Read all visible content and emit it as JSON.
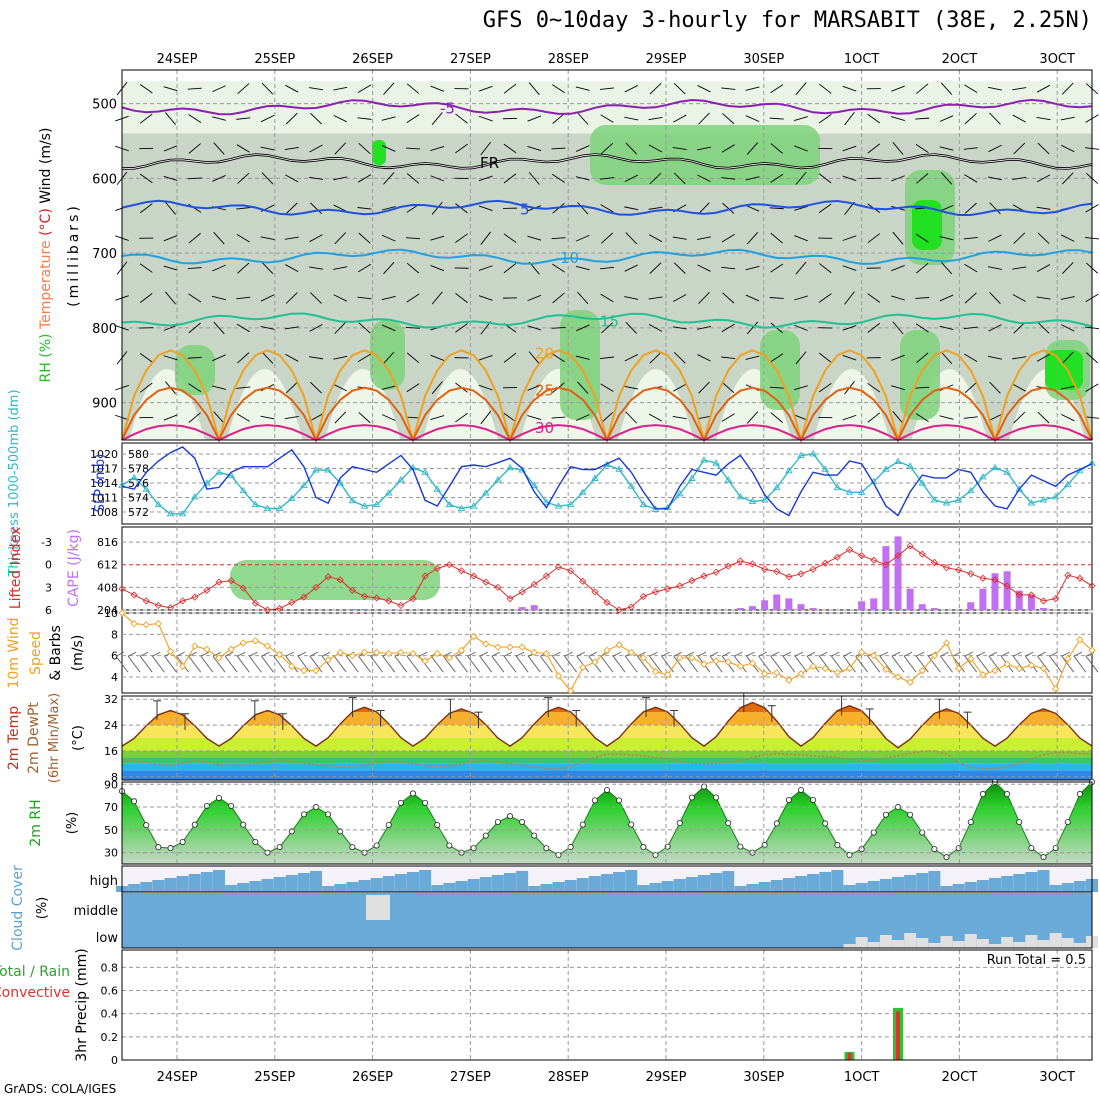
{
  "title": "GFS 0~10day 3-hourly for MARSABIT (38E, 2.25N)",
  "credit": "GrADS: COLA/IGES",
  "chart_data": [
    {
      "id": "upper-air",
      "type": "heatmap",
      "date_labels": [
        "24SEP",
        "25SEP",
        "26SEP",
        "27SEP",
        "28SEP",
        "29SEP",
        "30SEP",
        "1OCT",
        "2OCT",
        "3OCT"
      ],
      "ylabel_parts": [
        {
          "text": "RH (%)",
          "color": "#22c022"
        },
        {
          "text": "Temperature",
          "color": "#ff7a4a"
        },
        {
          "text": "(°C)",
          "color": "#d02020"
        },
        {
          "text": "Wind (m/s)",
          "color": "#000000"
        }
      ],
      "ylabel_right": "(millibars)",
      "yticks": [
        "500",
        "600",
        "700",
        "800",
        "900"
      ],
      "contours": [
        {
          "label": "-5",
          "color": "#8a1fb0",
          "level_mb": 505
        },
        {
          "label": "FR",
          "color": "#000000",
          "level_mb": 578
        },
        {
          "label": "5",
          "color": "#2050e0",
          "level_mb": 640
        },
        {
          "label": "10",
          "color": "#20a0e0",
          "level_mb": 705
        },
        {
          "label": "15",
          "color": "#20c090",
          "level_mb": 790
        },
        {
          "label": "20",
          "color": "#f0a020",
          "level_mb": 830
        },
        {
          "label": "25",
          "color": "#e06010",
          "level_mb": 880
        },
        {
          "label": "30",
          "color": "#e0208a",
          "level_mb": 930
        }
      ]
    },
    {
      "id": "thickness-slp",
      "type": "line",
      "ylabel_left": "Thickness 1000-500mb (dm)",
      "ylabel_right": "SLP (mb)",
      "left_ticks": [
        "580",
        "578",
        "576",
        "574",
        "572"
      ],
      "right_ticks": [
        "1020",
        "1017",
        "1014",
        "1011",
        "1008"
      ],
      "series": [
        {
          "name": "Thickness 1000-500mb (dm)",
          "color": "#30b8c8",
          "axis": "left",
          "ylim": [
            572,
            581.5
          ],
          "values": [
            576.5,
            577.5,
            576.0,
            574.0,
            572.8,
            572.8,
            575.0,
            576.8,
            578.2,
            577.8,
            575.8,
            574.0,
            573.5,
            573.5,
            574.8,
            576.5,
            578.5,
            578.5,
            576.8,
            574.5,
            573.8,
            574.0,
            575.5,
            577.2,
            578.8,
            578.2,
            576.0,
            574.0,
            573.5,
            573.8,
            575.5,
            577.2,
            578.8,
            578.5,
            576.5,
            574.3,
            573.8,
            574.0,
            575.6,
            577.4,
            579.2,
            578.6,
            576.4,
            574.0,
            573.4,
            573.6,
            575.4,
            577.4,
            579.8,
            579.4,
            577.2,
            575.0,
            574.4,
            574.6,
            576.2,
            578.4,
            580.4,
            580.6,
            578.6,
            576.2,
            575.6,
            575.6,
            577.0,
            578.6,
            579.6,
            579.0,
            576.8,
            574.6,
            574.2,
            574.6,
            575.8,
            577.6,
            578.8,
            578.2,
            576.0,
            574.2,
            574.6,
            575.0,
            576.6,
            578.4,
            579.4
          ]
        },
        {
          "name": "SLP (mb)",
          "color": "#1838d8",
          "axis": "right",
          "ylim": [
            1007,
            1020
          ],
          "values": [
            1013.0,
            1012.5,
            1015.5,
            1017.5,
            1019.0,
            1020.0,
            1018.0,
            1012.5,
            1012.8,
            1015.5,
            1016.5,
            1016.5,
            1016.5,
            1018.0,
            1019.5,
            1016.5,
            1011.0,
            1010.0,
            1014.5,
            1016.5,
            1016.0,
            1015.5,
            1017.0,
            1018.5,
            1016.0,
            1010.5,
            1009.5,
            1013.0,
            1016.5,
            1016.8,
            1016.5,
            1017.2,
            1018.0,
            1016.2,
            1012.0,
            1009.2,
            1013.0,
            1016.5,
            1016.0,
            1016.0,
            1017.0,
            1018.0,
            1015.5,
            1012.0,
            1009.0,
            1009.0,
            1013.0,
            1016.0,
            1015.5,
            1015.0,
            1017.0,
            1018.5,
            1015.5,
            1011.5,
            1009.0,
            1007.8,
            1012.0,
            1015.5,
            1015.0,
            1015.0,
            1017.5,
            1017.0,
            1013.5,
            1009.5,
            1007.8,
            1012.0,
            1015.0,
            1014.5,
            1014.5,
            1016.0,
            1015.5,
            1012.0,
            1009.5,
            1009.0,
            1012.5,
            1015.0,
            1014.0,
            1013.0,
            1015.0,
            1016.0,
            1017.0
          ]
        }
      ]
    },
    {
      "id": "lifted-cape",
      "type": "bar",
      "ylabel_left": "Lifted Index",
      "ylabel_right": "CAPE (J/kg)",
      "left_ticks": [
        "-3",
        "0",
        "3",
        "6"
      ],
      "right_ticks": [
        "816",
        "612",
        "408",
        "204"
      ],
      "series": [
        {
          "name": "Lifted Index",
          "color": "#e02828",
          "axis": "left",
          "ylim": [
            6,
            -5
          ],
          "values": [
            3.2,
            4.0,
            4.8,
            5.4,
            5.7,
            4.8,
            4.3,
            3.4,
            2.3,
            2.1,
            3.1,
            5.1,
            6.0,
            5.8,
            5.0,
            4.3,
            3.0,
            1.6,
            2.0,
            3.4,
            4.2,
            4.4,
            4.8,
            5.4,
            4.5,
            1.5,
            0.5,
            0.0,
            0.8,
            1.5,
            2.3,
            3.0,
            4.5,
            3.6,
            2.6,
            1.5,
            0.3,
            0.8,
            2.2,
            3.6,
            5.0,
            6.0,
            5.6,
            4.2,
            3.6,
            3.2,
            2.8,
            2.1,
            1.5,
            1.0,
            0.2,
            -0.5,
            -0.1,
            0.6,
            0.9,
            1.6,
            1.2,
            0.6,
            -0.2,
            -1.0,
            -2.0,
            -1.2,
            -0.6,
            0.0,
            -1.2,
            -2.5,
            -1.4,
            -0.3,
            0.4,
            0.7,
            1.2,
            1.8,
            2.0,
            2.8,
            4.0,
            4.0,
            4.8,
            4.5,
            1.4,
            1.8,
            2.8,
            3.2,
            2.8,
            3.4,
            2.2,
            1.3,
            0.6,
            0.0,
            0.6,
            0.1
          ]
        },
        {
          "name": "CAPE (J/kg)",
          "color": "#c070f0",
          "axis": "right",
          "ylim": [
            0,
            816
          ],
          "values": [
            0,
            0,
            0,
            0,
            0,
            0,
            0,
            0,
            0,
            0,
            0,
            0,
            0,
            0,
            0,
            0,
            0,
            0,
            0,
            10,
            10,
            0,
            5,
            5,
            0,
            0,
            0,
            0,
            0,
            0,
            0,
            0,
            0,
            30,
            50,
            0,
            0,
            0,
            0,
            0,
            0,
            0,
            0,
            0,
            0,
            0,
            0,
            0,
            0,
            0,
            0,
            20,
            40,
            100,
            160,
            120,
            60,
            20,
            0,
            0,
            0,
            90,
            120,
            660,
            760,
            220,
            60,
            20,
            0,
            0,
            80,
            220,
            380,
            400,
            200,
            160,
            20,
            0,
            0,
            0,
            0,
            0,
            0,
            0,
            0,
            0,
            0,
            120,
            100,
            60,
            80
          ]
        }
      ]
    },
    {
      "id": "wind10m",
      "type": "line",
      "ylabel": "10m Wind Speed & Barbs (m/s)",
      "ylabel_right": "(m/s)",
      "yticks": [
        "10",
        "8",
        "6",
        "4"
      ],
      "series": [
        {
          "name": "10m Wind Speed",
          "color": "#f0a020",
          "ylim": [
            2.5,
            10
          ],
          "values": [
            10,
            9,
            8.9,
            9.0,
            6.4,
            5.0,
            6.9,
            6.6,
            5.8,
            6.6,
            7.2,
            7.4,
            6.9,
            6.1,
            5.0,
            4.6,
            4.6,
            5.6,
            6.3,
            6.0,
            6.3,
            6.3,
            6.2,
            6.3,
            6.2,
            5.5,
            6.2,
            5.8,
            6.5,
            7.8,
            7.1,
            6.8,
            6.8,
            6.8,
            6.3,
            6.2,
            4.1,
            2.7,
            4.9,
            5.4,
            6.5,
            7.0,
            6.3,
            5.8,
            4.5,
            4.2,
            5.8,
            5.8,
            5.2,
            5.5,
            5.4,
            5.0,
            5.3,
            4.3,
            4.4,
            3.7,
            4.3,
            5.0,
            4.8,
            4.4,
            4.8,
            6.3,
            6.0,
            4.7,
            4.0,
            3.5,
            4.6,
            6.0,
            7.2,
            4.8,
            5.7,
            4.2,
            4.6,
            5.2,
            4.8,
            5.1,
            4.8,
            2.9,
            5.7,
            7.5,
            6.5,
            5.8,
            5.5,
            8.2,
            7.2,
            8.0,
            8.6,
            7.9,
            8.2,
            9.2,
            9.5
          ]
        }
      ]
    },
    {
      "id": "temp2m",
      "type": "area",
      "ylabel": "2m Temp 2m DewPt (6hr Min/Max) (°C)",
      "yticks": [
        "32",
        "24",
        "16",
        "8"
      ],
      "ylim": [
        7,
        33
      ],
      "bands": [
        {
          "from": 7,
          "to": 10,
          "color": "#2d86e8"
        },
        {
          "from": 10,
          "to": 12,
          "color": "#28b8e8"
        },
        {
          "from": 12,
          "to": 14,
          "color": "#36c76a"
        },
        {
          "from": 14,
          "to": 16,
          "color": "#7ccf3a"
        },
        {
          "from": 16,
          "to": 20,
          "color": "#c8f030"
        },
        {
          "from": 20,
          "to": 24,
          "color": "#f8e65a"
        },
        {
          "from": 24,
          "to": 28,
          "color": "#f8b02a"
        },
        {
          "from": 28,
          "to": 33,
          "color": "#e06a10"
        }
      ],
      "series": [
        {
          "name": "2m Temp",
          "color": "#7a3010",
          "peaks": [
            28.5,
            28.5,
            29.5,
            29.0,
            29.5,
            29.5,
            31.0,
            30.0,
            29.0
          ],
          "troughs": [
            17.5,
            17.5,
            17.5,
            17.5,
            17.5,
            17.5,
            17.5,
            17.5,
            17.0,
            17.5
          ]
        },
        {
          "name": "2m DewPt",
          "color": "#c08040",
          "values": [
            13.0,
            13.0,
            12.5,
            11.8,
            11.5,
            12.2,
            13.0,
            12.5,
            11.8,
            11.5,
            11.5,
            12.0,
            12.5,
            13.0,
            12.8,
            12.2,
            11.8,
            11.4,
            11.0,
            11.0,
            11.5,
            12.5,
            12.8,
            12.5,
            12.0,
            11.5,
            11.2,
            11.2,
            12.0,
            12.8,
            13.0,
            12.5,
            12.0,
            11.5,
            11.0,
            10.5,
            10.5,
            11.0,
            12.5,
            14.0,
            15.0,
            15.0,
            14.8,
            14.5,
            14.0,
            13.5,
            12.8,
            12.2,
            12.0,
            12.2,
            12.5,
            13.0,
            14.0,
            14.8,
            15.2,
            15.0,
            14.8,
            14.5,
            14.2,
            14.0,
            13.5,
            13.0,
            13.2,
            13.8,
            14.5,
            15.2,
            15.8,
            16.0,
            15.0,
            12.5,
            10.8,
            10.5,
            10.5,
            11.0,
            12.0,
            13.5,
            14.8,
            15.5,
            15.5,
            15.2,
            15.0
          ]
        }
      ]
    },
    {
      "id": "rh2m",
      "type": "area",
      "ylabel": "2m RH (%)",
      "yticks": [
        "90",
        "70",
        "50",
        "30"
      ],
      "ylim": [
        20,
        92
      ],
      "series": [
        {
          "name": "2m RH",
          "color": "#1a7a1a",
          "peaks": [
            84,
            78,
            70,
            82,
            62,
            85,
            88,
            85,
            70,
            92
          ],
          "troughs": [
            28,
            34,
            30,
            30,
            30,
            28,
            28,
            30,
            28,
            26
          ]
        }
      ]
    },
    {
      "id": "clouds",
      "type": "heatmap",
      "ylabel": "Cloud Cover (%)",
      "levels": [
        "high",
        "middle",
        "low"
      ],
      "color": "#6aaad8"
    },
    {
      "id": "precip",
      "type": "bar",
      "ylabel": "3hr Precip (mm)",
      "ylabel_left": "Total / Rain",
      "ylabel_left2": "Convective",
      "run_total": "Run Total = 0.5",
      "yticks": [
        "0.8",
        "0.6",
        "0.4",
        "0.2",
        "0"
      ],
      "ylim": [
        0,
        0.95
      ],
      "bars": [
        {
          "index": 60,
          "value": 0.07,
          "convective": 0.06
        },
        {
          "index": 64,
          "value": 0.45,
          "convective": 0.42
        }
      ]
    }
  ]
}
